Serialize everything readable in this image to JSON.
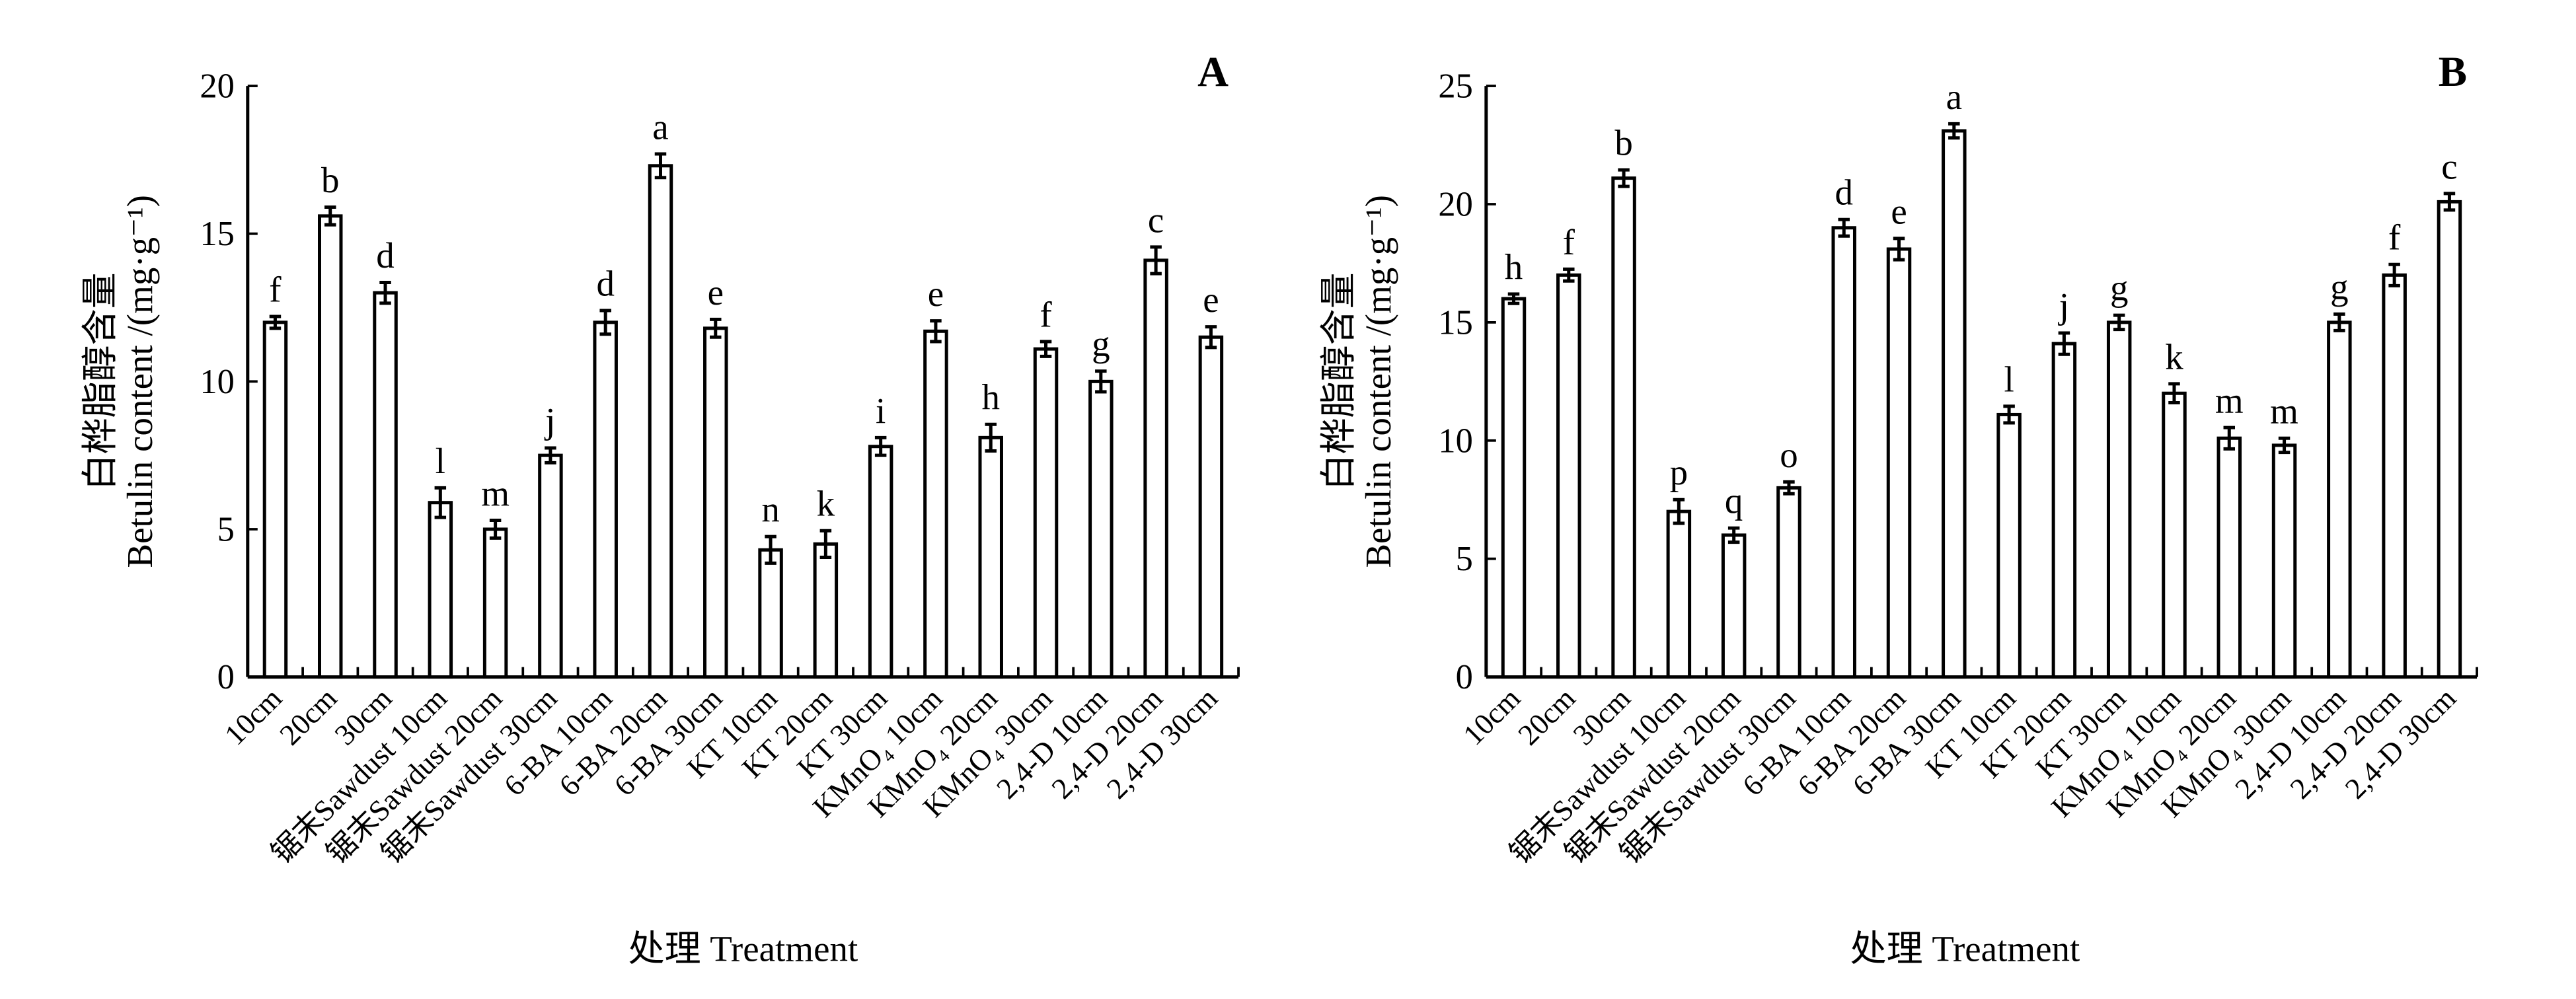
{
  "chart_data": [
    {
      "type": "bar",
      "panel_label": "A",
      "xlabel": "处理 Treatment",
      "ylabel_cn": "白桦脂醇含量",
      "ylabel_en": "Betulin content /(mg·g⁻¹)",
      "ylim": [
        0,
        20
      ],
      "yticks": [
        0,
        5,
        10,
        15,
        20
      ],
      "grid": false,
      "categories": [
        "10cm",
        "20cm",
        "30cm",
        "锯末Sawdust 10cm",
        "锯末Sawdust 20cm",
        "锯末Sawdust 30cm",
        "6-BA 10cm",
        "6-BA 20cm",
        "6-BA 30cm",
        "KT 10cm",
        "KT 20cm",
        "KT 30cm",
        "KMnO₄ 10cm",
        "KMnO₄ 20cm",
        "KMnO₄ 30cm",
        "2,4-D 10cm",
        "2,4-D 20cm",
        "2,4-D 30cm"
      ],
      "values": [
        12.0,
        15.6,
        13.0,
        5.9,
        5.0,
        7.5,
        12.0,
        17.3,
        11.8,
        4.3,
        4.5,
        7.8,
        11.7,
        8.1,
        11.1,
        10.0,
        14.1,
        11.5
      ],
      "errors": [
        0.2,
        0.3,
        0.35,
        0.5,
        0.3,
        0.25,
        0.4,
        0.4,
        0.3,
        0.45,
        0.45,
        0.3,
        0.35,
        0.45,
        0.25,
        0.35,
        0.45,
        0.35
      ],
      "significance": [
        "f",
        "b",
        "d",
        "l",
        "m",
        "j",
        "d",
        "a",
        "e",
        "n",
        "k",
        "i",
        "e",
        "h",
        "f",
        "g",
        "c",
        "e"
      ]
    },
    {
      "type": "bar",
      "panel_label": "B",
      "xlabel": "处理 Treatment",
      "ylabel_cn": "白桦脂醇含量",
      "ylabel_en": "Betulin content /(mg·g⁻¹)",
      "ylim": [
        0,
        25
      ],
      "yticks": [
        0,
        5,
        10,
        15,
        20,
        25
      ],
      "grid": false,
      "categories": [
        "10cm",
        "20cm",
        "30cm",
        "锯末Sawdust 10cm",
        "锯末Sawdust 20cm",
        "锯末Sawdust 30cm",
        "6-BA 10cm",
        "6-BA 20cm",
        "6-BA 30cm",
        "KT 10cm",
        "KT 20cm",
        "KT 30cm",
        "KMnO₄ 10cm",
        "KMnO₄ 20cm",
        "KMnO₄ 30cm",
        "2,4-D 10cm",
        "2,4-D 20cm",
        "2,4-D 30cm"
      ],
      "values": [
        16.0,
        17.0,
        21.1,
        7.0,
        6.0,
        8.0,
        19.0,
        18.1,
        23.1,
        11.1,
        14.1,
        15.0,
        12.0,
        10.1,
        9.8,
        15.0,
        17.0,
        20.1
      ],
      "errors": [
        0.2,
        0.25,
        0.35,
        0.5,
        0.3,
        0.25,
        0.35,
        0.45,
        0.3,
        0.35,
        0.45,
        0.3,
        0.4,
        0.45,
        0.3,
        0.35,
        0.45,
        0.35
      ],
      "significance": [
        "h",
        "f",
        "b",
        "p",
        "q",
        "o",
        "d",
        "e",
        "a",
        "l",
        "j",
        "g",
        "k",
        "m",
        "m",
        "g",
        "f",
        "c"
      ]
    }
  ]
}
